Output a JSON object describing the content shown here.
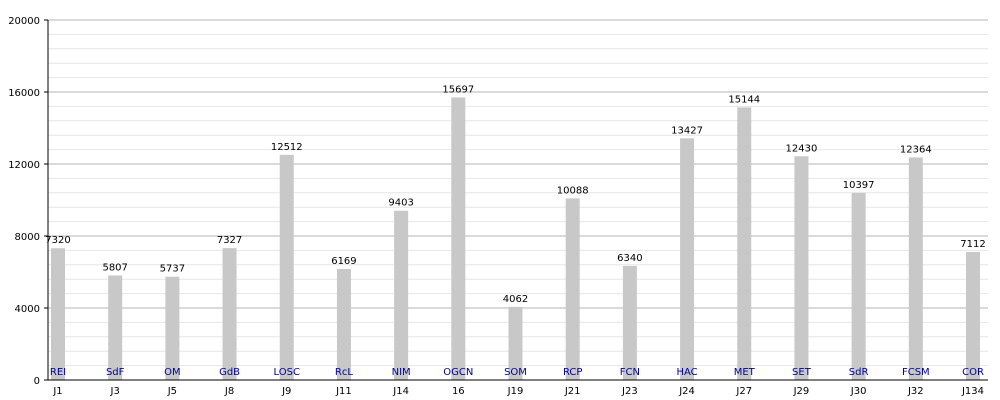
{
  "chart_data": {
    "type": "bar",
    "title": "",
    "xlabel": "",
    "ylabel": "",
    "ylim": [
      0,
      20000
    ],
    "yticks": [
      0,
      4000,
      8000,
      12000,
      16000,
      20000
    ],
    "grid": true,
    "bar_color": "#c8c8c8",
    "team_color": "#000099",
    "categories": [
      "J1",
      "J3",
      "J5",
      "J8",
      "J9",
      "J11",
      "J14",
      "16",
      "J19",
      "J21",
      "J23",
      "J24",
      "J27",
      "J29",
      "J30",
      "J32",
      "J134"
    ],
    "teams": [
      "REI",
      "SdF",
      "OM",
      "GdB",
      "LOSC",
      "RcL",
      "NIM",
      "OGCN",
      "SOM",
      "RCP",
      "FCN",
      "HAC",
      "MET",
      "SET",
      "SdR",
      "FCSM",
      "COR"
    ],
    "values": [
      7320,
      5807,
      5737,
      7327,
      12512,
      6169,
      9403,
      15697,
      4062,
      10088,
      6340,
      13427,
      15144,
      12430,
      10397,
      12364,
      7112
    ],
    "value_labels": [
      "7320",
      "5807",
      "5737",
      "7327",
      "12512",
      "6169",
      "9403",
      "15697",
      "4062",
      "10088",
      "6340",
      "13427",
      "15144",
      "12430",
      "10397",
      "12364",
      "7112"
    ]
  }
}
